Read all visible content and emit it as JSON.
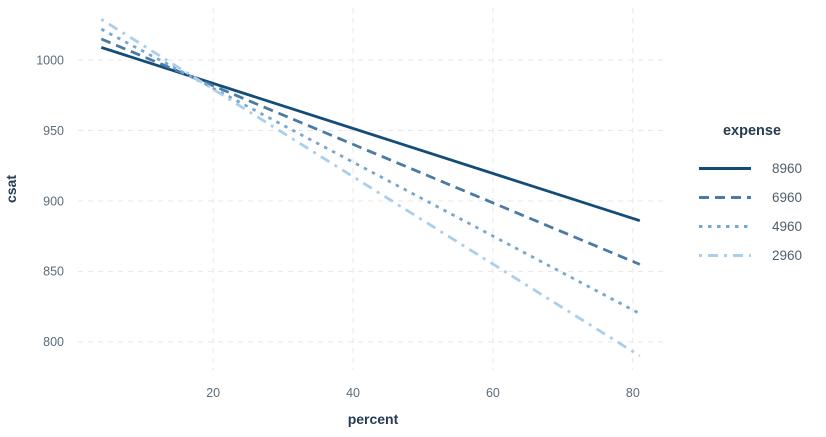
{
  "figure": {
    "background": "#ffffff"
  },
  "chart_data": {
    "type": "line",
    "title": "",
    "xlabel": "percent",
    "ylabel": "csat",
    "legend_title": "expense",
    "legend_position": "right",
    "xlim": [
      3.1,
      84.6
    ],
    "ylim": [
      780,
      1037
    ],
    "grid": {
      "style": "dashed",
      "color": "#e7e7e7",
      "x_ticks": [
        20,
        40,
        60,
        80
      ],
      "y_ticks": [
        800,
        850,
        900,
        950,
        1000
      ]
    },
    "axis_text_color": "#5c6b7a",
    "axis_title_color": "#253c52",
    "legend_label_color": "#4f5f6e",
    "series": [
      {
        "name": "8960",
        "color": "#124d79",
        "linetype": "solid",
        "x": [
          4,
          81
        ],
        "y": [
          1009,
          886
        ]
      },
      {
        "name": "6960",
        "color": "#4b7aa5",
        "linetype": "dashed",
        "x": [
          4,
          81
        ],
        "y": [
          1015,
          855
        ]
      },
      {
        "name": "4960",
        "color": "#79a8cf",
        "linetype": "dotted",
        "x": [
          4,
          81
        ],
        "y": [
          1022,
          820
        ]
      },
      {
        "name": "2960",
        "color": "#a9cfec",
        "linetype": "dotdash",
        "x": [
          4,
          81
        ],
        "y": [
          1029,
          790
        ]
      }
    ]
  }
}
